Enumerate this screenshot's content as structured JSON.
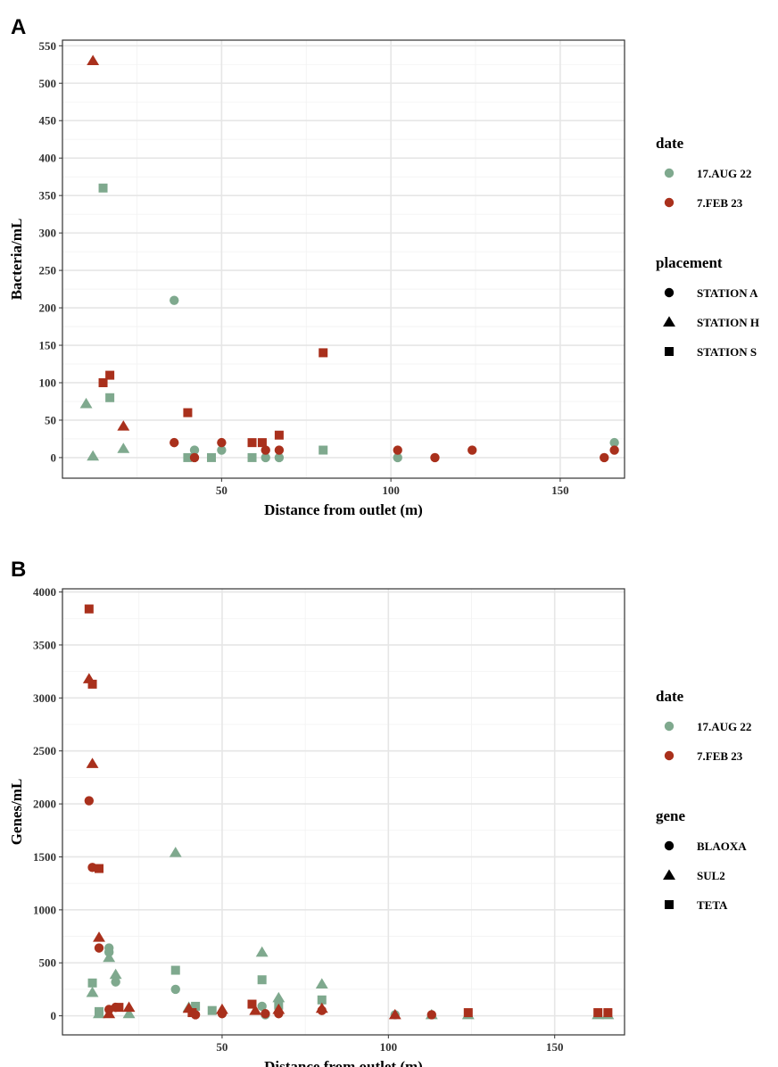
{
  "colors": {
    "aug": "#7fa98e",
    "feb": "#a9301c"
  },
  "chart_data": [
    {
      "panel_label": "A",
      "type": "scatter",
      "xlabel": "Distance from outlet (m)",
      "ylabel": "Bacteria/mL",
      "xlim": [
        3,
        169
      ],
      "ylim": [
        -27.5,
        557.5
      ],
      "xticks": [
        50,
        100,
        150
      ],
      "xtick_labels": [
        "50",
        "100",
        "150"
      ],
      "yticks": [
        0,
        50,
        100,
        150,
        200,
        250,
        300,
        350,
        400,
        450,
        500,
        550
      ],
      "ytick_labels": [
        "0",
        "50",
        "100",
        "150",
        "200",
        "250",
        "300",
        "350",
        "400",
        "450",
        "500",
        "550"
      ],
      "grid": true,
      "legend_placement": "right",
      "legends": [
        {
          "title": "date",
          "entries": [
            {
              "label": "17.AUG 22",
              "shape": "circle",
              "color": "#7fa98e"
            },
            {
              "label": "7.FEB 23",
              "shape": "circle",
              "color": "#a9301c"
            }
          ]
        },
        {
          "title": "placement",
          "entries": [
            {
              "label": "STATION A",
              "shape": "circle",
              "color": "#000000"
            },
            {
              "label": "STATION H",
              "shape": "triangle",
              "color": "#000000"
            },
            {
              "label": "STATION S",
              "shape": "square",
              "color": "#000000"
            }
          ]
        }
      ],
      "points": [
        {
          "x": 10,
          "y": 72,
          "date": "aug",
          "shape": "triangle"
        },
        {
          "x": 12,
          "y": 2,
          "date": "aug",
          "shape": "triangle"
        },
        {
          "x": 15,
          "y": 360,
          "date": "aug",
          "shape": "square"
        },
        {
          "x": 17,
          "y": 80,
          "date": "aug",
          "shape": "square"
        },
        {
          "x": 21,
          "y": 12,
          "date": "aug",
          "shape": "triangle"
        },
        {
          "x": 36,
          "y": 210,
          "date": "aug",
          "shape": "circle"
        },
        {
          "x": 40,
          "y": 0,
          "date": "aug",
          "shape": "square"
        },
        {
          "x": 42,
          "y": 10,
          "date": "aug",
          "shape": "circle"
        },
        {
          "x": 47,
          "y": 0,
          "date": "aug",
          "shape": "square"
        },
        {
          "x": 50,
          "y": 10,
          "date": "aug",
          "shape": "circle"
        },
        {
          "x": 59,
          "y": 0,
          "date": "aug",
          "shape": "square"
        },
        {
          "x": 63,
          "y": 0,
          "date": "aug",
          "shape": "circle"
        },
        {
          "x": 67,
          "y": 0,
          "date": "aug",
          "shape": "circle"
        },
        {
          "x": 80,
          "y": 10,
          "date": "aug",
          "shape": "square"
        },
        {
          "x": 102,
          "y": 0,
          "date": "aug",
          "shape": "circle"
        },
        {
          "x": 166,
          "y": 20,
          "date": "aug",
          "shape": "circle"
        },
        {
          "x": 12,
          "y": 530,
          "date": "feb",
          "shape": "triangle"
        },
        {
          "x": 15,
          "y": 100,
          "date": "feb",
          "shape": "square"
        },
        {
          "x": 17,
          "y": 110,
          "date": "feb",
          "shape": "square"
        },
        {
          "x": 21,
          "y": 42,
          "date": "feb",
          "shape": "triangle"
        },
        {
          "x": 36,
          "y": 20,
          "date": "feb",
          "shape": "circle"
        },
        {
          "x": 40,
          "y": 60,
          "date": "feb",
          "shape": "square"
        },
        {
          "x": 42,
          "y": 0,
          "date": "feb",
          "shape": "circle"
        },
        {
          "x": 50,
          "y": 20,
          "date": "feb",
          "shape": "circle"
        },
        {
          "x": 59,
          "y": 20,
          "date": "feb",
          "shape": "square"
        },
        {
          "x": 62,
          "y": 20,
          "date": "feb",
          "shape": "square"
        },
        {
          "x": 63,
          "y": 10,
          "date": "feb",
          "shape": "circle"
        },
        {
          "x": 67,
          "y": 30,
          "date": "feb",
          "shape": "square"
        },
        {
          "x": 67,
          "y": 10,
          "date": "feb",
          "shape": "circle"
        },
        {
          "x": 80,
          "y": 140,
          "date": "feb",
          "shape": "square"
        },
        {
          "x": 102,
          "y": 10,
          "date": "feb",
          "shape": "circle"
        },
        {
          "x": 113,
          "y": 0,
          "date": "feb",
          "shape": "circle"
        },
        {
          "x": 124,
          "y": 10,
          "date": "feb",
          "shape": "circle"
        },
        {
          "x": 163,
          "y": 0,
          "date": "feb",
          "shape": "circle"
        },
        {
          "x": 166,
          "y": 10,
          "date": "feb",
          "shape": "circle"
        }
      ]
    },
    {
      "panel_label": "B",
      "type": "scatter",
      "xlabel": "Distance from outlet (m)",
      "ylabel": "Genes/mL",
      "xlim": [
        2,
        171
      ],
      "ylim": [
        -180,
        4030
      ],
      "xticks": [
        50,
        100,
        150
      ],
      "xtick_labels": [
        "50",
        "100",
        "150"
      ],
      "yticks": [
        0,
        500,
        1000,
        1500,
        2000,
        2500,
        3000,
        3500,
        4000
      ],
      "ytick_labels": [
        "0",
        "500",
        "1000",
        "1500",
        "2000",
        "2500",
        "3000",
        "3500",
        "4000"
      ],
      "grid": true,
      "legend_placement": "right",
      "legends": [
        {
          "title": "date",
          "entries": [
            {
              "label": "17.AUG 22",
              "shape": "circle",
              "color": "#7fa98e"
            },
            {
              "label": "7.FEB 23",
              "shape": "circle",
              "color": "#a9301c"
            }
          ]
        },
        {
          "title": "gene",
          "entries": [
            {
              "label": "BLAOXA",
              "shape": "circle",
              "color": "#000000"
            },
            {
              "label": "SUL2",
              "shape": "triangle",
              "color": "#000000"
            },
            {
              "label": "TETA",
              "shape": "square",
              "color": "#000000"
            }
          ]
        }
      ],
      "points": [
        {
          "x": 11,
          "y": 220,
          "date": "aug",
          "shape": "triangle"
        },
        {
          "x": 11,
          "y": 310,
          "date": "aug",
          "shape": "square"
        },
        {
          "x": 13,
          "y": 20,
          "date": "aug",
          "shape": "triangle"
        },
        {
          "x": 13,
          "y": 40,
          "date": "aug",
          "shape": "square"
        },
        {
          "x": 16,
          "y": 640,
          "date": "aug",
          "shape": "circle"
        },
        {
          "x": 16,
          "y": 600,
          "date": "aug",
          "shape": "circle"
        },
        {
          "x": 16,
          "y": 550,
          "date": "aug",
          "shape": "triangle"
        },
        {
          "x": 18,
          "y": 390,
          "date": "aug",
          "shape": "triangle"
        },
        {
          "x": 18,
          "y": 320,
          "date": "aug",
          "shape": "circle"
        },
        {
          "x": 22,
          "y": 20,
          "date": "aug",
          "shape": "triangle"
        },
        {
          "x": 36,
          "y": 1540,
          "date": "aug",
          "shape": "triangle"
        },
        {
          "x": 36,
          "y": 430,
          "date": "aug",
          "shape": "square"
        },
        {
          "x": 36,
          "y": 250,
          "date": "aug",
          "shape": "circle"
        },
        {
          "x": 40,
          "y": 80,
          "date": "aug",
          "shape": "triangle"
        },
        {
          "x": 42,
          "y": 90,
          "date": "aug",
          "shape": "square"
        },
        {
          "x": 47,
          "y": 50,
          "date": "aug",
          "shape": "square"
        },
        {
          "x": 50,
          "y": 30,
          "date": "aug",
          "shape": "circle"
        },
        {
          "x": 62,
          "y": 600,
          "date": "aug",
          "shape": "triangle"
        },
        {
          "x": 62,
          "y": 340,
          "date": "aug",
          "shape": "square"
        },
        {
          "x": 62,
          "y": 90,
          "date": "aug",
          "shape": "circle"
        },
        {
          "x": 63,
          "y": 10,
          "date": "aug",
          "shape": "circle"
        },
        {
          "x": 67,
          "y": 170,
          "date": "aug",
          "shape": "triangle"
        },
        {
          "x": 67,
          "y": 100,
          "date": "aug",
          "shape": "square"
        },
        {
          "x": 80,
          "y": 300,
          "date": "aug",
          "shape": "triangle"
        },
        {
          "x": 80,
          "y": 150,
          "date": "aug",
          "shape": "square"
        },
        {
          "x": 102,
          "y": 10,
          "date": "aug",
          "shape": "circle"
        },
        {
          "x": 113,
          "y": 10,
          "date": "aug",
          "shape": "triangle"
        },
        {
          "x": 124,
          "y": 10,
          "date": "aug",
          "shape": "triangle"
        },
        {
          "x": 163,
          "y": 10,
          "date": "aug",
          "shape": "triangle"
        },
        {
          "x": 166,
          "y": 10,
          "date": "aug",
          "shape": "triangle"
        },
        {
          "x": 10,
          "y": 3840,
          "date": "feb",
          "shape": "square"
        },
        {
          "x": 10,
          "y": 3180,
          "date": "feb",
          "shape": "triangle"
        },
        {
          "x": 10,
          "y": 2030,
          "date": "feb",
          "shape": "circle"
        },
        {
          "x": 11,
          "y": 3130,
          "date": "feb",
          "shape": "square"
        },
        {
          "x": 11,
          "y": 2380,
          "date": "feb",
          "shape": "triangle"
        },
        {
          "x": 11,
          "y": 1400,
          "date": "feb",
          "shape": "circle"
        },
        {
          "x": 13,
          "y": 1390,
          "date": "feb",
          "shape": "square"
        },
        {
          "x": 13,
          "y": 740,
          "date": "feb",
          "shape": "triangle"
        },
        {
          "x": 13,
          "y": 640,
          "date": "feb",
          "shape": "circle"
        },
        {
          "x": 16,
          "y": 20,
          "date": "feb",
          "shape": "triangle"
        },
        {
          "x": 16,
          "y": 60,
          "date": "feb",
          "shape": "circle"
        },
        {
          "x": 18,
          "y": 80,
          "date": "feb",
          "shape": "circle"
        },
        {
          "x": 19,
          "y": 80,
          "date": "feb",
          "shape": "square"
        },
        {
          "x": 22,
          "y": 80,
          "date": "feb",
          "shape": "triangle"
        },
        {
          "x": 40,
          "y": 70,
          "date": "feb",
          "shape": "triangle"
        },
        {
          "x": 41,
          "y": 30,
          "date": "feb",
          "shape": "square"
        },
        {
          "x": 42,
          "y": 10,
          "date": "feb",
          "shape": "circle"
        },
        {
          "x": 50,
          "y": 60,
          "date": "feb",
          "shape": "triangle"
        },
        {
          "x": 50,
          "y": 20,
          "date": "feb",
          "shape": "circle"
        },
        {
          "x": 59,
          "y": 110,
          "date": "feb",
          "shape": "square"
        },
        {
          "x": 60,
          "y": 50,
          "date": "feb",
          "shape": "triangle"
        },
        {
          "x": 63,
          "y": 20,
          "date": "feb",
          "shape": "circle"
        },
        {
          "x": 67,
          "y": 60,
          "date": "feb",
          "shape": "triangle"
        },
        {
          "x": 67,
          "y": 20,
          "date": "feb",
          "shape": "circle"
        },
        {
          "x": 80,
          "y": 70,
          "date": "feb",
          "shape": "triangle"
        },
        {
          "x": 80,
          "y": 50,
          "date": "feb",
          "shape": "circle"
        },
        {
          "x": 102,
          "y": 10,
          "date": "feb",
          "shape": "triangle"
        },
        {
          "x": 113,
          "y": 10,
          "date": "feb",
          "shape": "circle"
        },
        {
          "x": 124,
          "y": 30,
          "date": "feb",
          "shape": "square"
        },
        {
          "x": 163,
          "y": 30,
          "date": "feb",
          "shape": "square"
        },
        {
          "x": 166,
          "y": 30,
          "date": "feb",
          "shape": "square"
        }
      ]
    }
  ]
}
